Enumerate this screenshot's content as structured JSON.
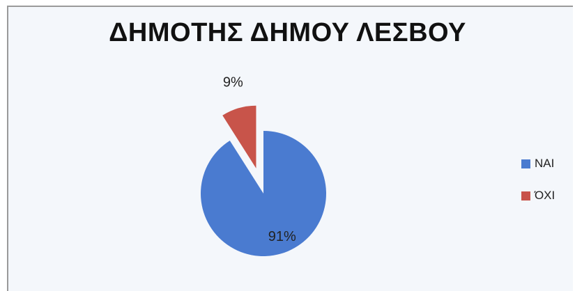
{
  "chart_data": {
    "type": "pie",
    "title": "ΔΗΜΟΤΗΣ ΔΗΜΟΥ ΛΕΣΒΟΥ",
    "slices": [
      {
        "name": "ΝΑΙ",
        "value": 91,
        "label": "91%",
        "color": "#4a7bd0"
      },
      {
        "name": "ΌΧΙ",
        "value": 9,
        "label": "9%",
        "color": "#c8544a"
      }
    ],
    "legend": "right"
  }
}
